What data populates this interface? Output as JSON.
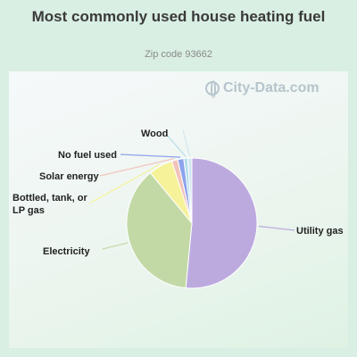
{
  "header": {
    "title": "Most commonly used house heating fuel",
    "subtitle": "Zip code 93662"
  },
  "watermark": {
    "text": "City-Data.com",
    "icon": "globe-icon"
  },
  "chart_data": {
    "type": "pie",
    "title": "Most commonly used house heating fuel",
    "subtitle": "Zip code 93662",
    "legend": "none",
    "slices": [
      {
        "label": "Utility gas",
        "value": 51.5,
        "color": "#bcaadf"
      },
      {
        "label": "Electricity",
        "value": 37.5,
        "color": "#c2d9a6"
      },
      {
        "label": "Bottled, tank, or LP gas",
        "value": 6.0,
        "color": "#f6f29a"
      },
      {
        "label": "Solar energy",
        "value": 1.5,
        "color": "#f2c3bb"
      },
      {
        "label": "No fuel used",
        "value": 1.5,
        "color": "#8ea3ea"
      },
      {
        "label": "Wood",
        "value": 1.0,
        "color": "#b6ddec"
      },
      {
        "label": "",
        "value": 1.0,
        "color": "#d3e6f0"
      }
    ]
  }
}
